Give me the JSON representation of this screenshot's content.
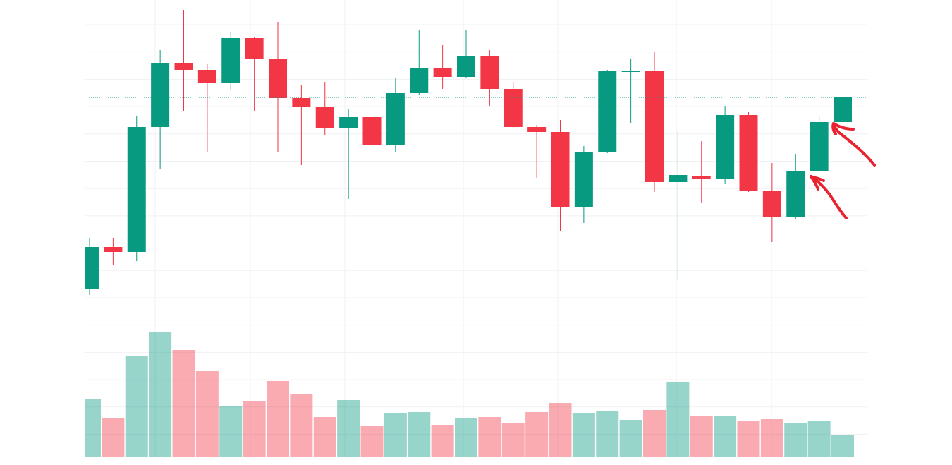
{
  "chart_data": {
    "type": "candlestick",
    "open": [
      249,
      309,
      302,
      479,
      570,
      560,
      542,
      605,
      575,
      520,
      507,
      478,
      493,
      453,
      527,
      562,
      550,
      580,
      533,
      479,
      472,
      366,
      443,
      557,
      558,
      401,
      410,
      406,
      496,
      388,
      351,
      417,
      486
    ],
    "high": [
      321,
      321,
      494,
      588,
      645,
      569,
      613,
      607,
      628,
      538,
      543,
      504,
      517,
      549,
      616,
      595,
      616,
      588,
      543,
      482,
      489,
      452,
      560,
      576,
      585,
      473,
      459,
      509,
      500,
      428,
      441,
      494,
      521
    ],
    "low": [
      241,
      284,
      289,
      419,
      501,
      443,
      531,
      501,
      444,
      425,
      468,
      377,
      434,
      443,
      525,
      533,
      549,
      509,
      478,
      407,
      331,
      343,
      442,
      484,
      387,
      262,
      371,
      398,
      387,
      316,
      348,
      416,
      486
    ],
    "close": [
      309,
      302,
      479,
      570,
      560,
      542,
      605,
      575,
      520,
      507,
      478,
      493,
      453,
      527,
      562,
      550,
      580,
      533,
      479,
      472,
      366,
      443,
      558,
      558,
      401,
      411,
      406,
      496,
      388,
      351,
      417,
      486,
      521
    ],
    "volume": [
      82,
      55,
      142,
      176,
      151,
      121,
      71,
      78,
      107,
      88,
      56,
      80,
      43,
      62,
      63,
      44,
      54,
      56,
      48,
      63,
      76,
      61,
      65,
      52,
      66,
      106,
      57,
      57,
      50,
      53,
      47,
      50,
      31
    ],
    "ylim": [
      229,
      659
    ],
    "y2lim": [
      0,
      647
    ],
    "up_color": "#089981",
    "down_color": "#f23645",
    "grid": true
  }
}
